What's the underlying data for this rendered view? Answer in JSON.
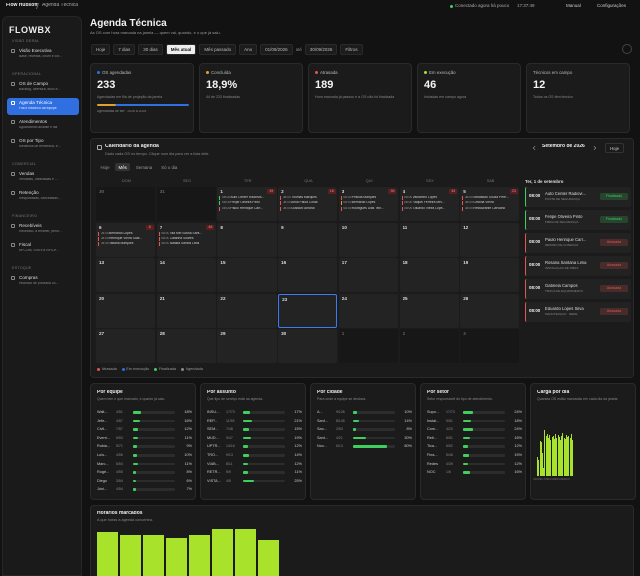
{
  "topbar": {
    "brand": "Flow Hubsoft",
    "crumb": "Agenda Técnica",
    "status": "Conectado agora há pouco",
    "clock": "17:37:49",
    "manual": "Manual",
    "settings": "Configurações"
  },
  "sidebar": {
    "logo": "FLOWBX",
    "sections": [
      {
        "title": "VISÃO GERAL",
        "items": [
          {
            "label": "Visão Executiva",
            "sub": "Base, receitas, churn e cor..."
          }
        ]
      },
      {
        "title": "OPERACIONAL",
        "items": [
          {
            "label": "OS de Campo",
            "sub": "Backlog, abertura, fluxo e..."
          },
          {
            "label": "Agenda Técnica",
            "sub": "Fila e histórico da equipe",
            "active": true
          },
          {
            "label": "Atendimentos",
            "sub": "Aguardando análise e fila"
          },
          {
            "label": "OS por Tipo",
            "sub": "Mecânica de tendência, e..."
          }
        ]
      },
      {
        "title": "COMERCIAL",
        "items": [
          {
            "label": "Vendas",
            "sub": "Vendidas, habilitadas e ..."
          },
          {
            "label": "Retenção",
            "sub": "Respondidas, canceladas..."
          }
        ]
      },
      {
        "title": "FINANCEIRO",
        "items": [
          {
            "label": "Recebíveis",
            "sub": "Recebido, a receber, pend..."
          },
          {
            "label": "Fiscal",
            "sub": "NFCOM, SVA e a NFS-e..."
          }
        ]
      },
      {
        "title": "ESTOQUE",
        "items": [
          {
            "label": "Compras",
            "sub": "Histórico de produtos co..."
          }
        ]
      }
    ]
  },
  "header": {
    "title": "Agenda Técnica",
    "subtitle": "As OS com hora marcada na janela — quem vai, quando, e o que já saiu."
  },
  "filters": {
    "presets": [
      {
        "label": "Hoje"
      },
      {
        "label": "7 dias"
      },
      {
        "label": "30 dias"
      },
      {
        "label": "Mês atual",
        "active": true
      },
      {
        "label": "Mês passado"
      },
      {
        "label": "Ano"
      }
    ],
    "date_from": "01/09/2026",
    "separator": "até",
    "date_to": "30/09/2026",
    "filters": "Filtros"
  },
  "kpis": [
    {
      "label": "OS agendadas",
      "value": "233",
      "note": "Agendadas em fila de projeção da janela",
      "note2": "Agendadas de set · 2026 a 2026",
      "color": "#2f6fe0"
    },
    {
      "label": "Concluída",
      "value": "18,9%",
      "note": "44 de 233 finalizadas",
      "color": "#e0a030"
    },
    {
      "label": "Atrasada",
      "value": "189",
      "note": "Hora marcada já passou e a OS não foi finalizada",
      "color": "#e05555"
    },
    {
      "label": "Em execução",
      "value": "46",
      "note": "Iniciadas em campo agora",
      "color": "#a8e22b"
    },
    {
      "label": "Técnicos em campo",
      "value": "12",
      "note": "Todos os OS têm técnico"
    }
  ],
  "calendar": {
    "title": "Calendário da agenda",
    "subtitle": "Dado cada OS no tempo. Clique num dia para ver a lista dele.",
    "views": [
      {
        "label": "Hoje"
      },
      {
        "label": "Mês",
        "active": true
      },
      {
        "label": "Semana"
      },
      {
        "label": "Só o dia"
      }
    ],
    "month_label": "Setembro de 2026",
    "today": "Hoje",
    "weekdays": [
      "DOM",
      "SEG",
      "TER",
      "QUA",
      "QUI",
      "SEX",
      "SAB"
    ],
    "weeks": [
      [
        {
          "day": 30,
          "muted": true
        },
        {
          "day": 31,
          "muted": true
        },
        {
          "day": 1,
          "count": 19,
          "events": [
            {
              "time": "08:00",
              "name": "Auto Center Radiovis...",
              "color": "#3ecf5e"
            },
            {
              "time": "08:00",
              "name": "Felipe Oliveira Pinto",
              "color": "#3ecf5e"
            },
            {
              "time": "08:00",
              "name": "Paulo Henrique Carr...",
              "color": "#e05555"
            }
          ]
        },
        {
          "day": 2,
          "count": 16,
          "events": [
            {
              "time": "08:00",
              "name": "Thomas Marques",
              "color": "#e05555"
            },
            {
              "time": "08:00",
              "name": "Alma Paula Costa",
              "color": "#e05555"
            },
            {
              "time": "08:00",
              "name": "Gustavo Amaral",
              "color": "#e05555"
            }
          ]
        },
        {
          "day": 3,
          "count": 35,
          "events": [
            {
              "time": "08:00",
              "name": "Priscila Marques",
              "color": "#e05555"
            },
            {
              "time": "08:00",
              "name": "Bernardo Lopes",
              "color": "#e0a030"
            },
            {
              "time": "08:00",
              "name": "Rodrigues Dias Teix...",
              "color": "#e05555"
            }
          ]
        },
        {
          "day": 4,
          "count": 34,
          "events": [
            {
              "time": "08:00",
              "name": "Valdomiro Lopes",
              "color": "#e05555"
            },
            {
              "time": "08:00",
              "name": "Raquel Ferreira Mel...",
              "color": "#e05555"
            },
            {
              "time": "08:00",
              "name": "Eduardo Vieira Lope...",
              "color": "#e05555"
            }
          ]
        },
        {
          "day": 5,
          "count": 23,
          "events": [
            {
              "time": "08:00",
              "name": "Sebastião Souza Pere...",
              "color": "#e05555"
            },
            {
              "time": "08:00",
              "name": "Cristina Vieira",
              "color": "#e05555"
            },
            {
              "time": "08:00",
              "name": "Restaurante Carvalho",
              "color": "#e05555"
            }
          ]
        }
      ],
      [
        {
          "day": 6,
          "count": 8,
          "events": [
            {
              "time": "08:00",
              "name": "Bernardo Lopes",
              "color": "#e05555"
            },
            {
              "time": "08:00",
              "name": "Henrique Vieira Soar...",
              "color": "#e05555"
            },
            {
              "time": "08:00",
              "name": "Tatiana Marques",
              "color": "#e05555"
            }
          ]
        },
        {
          "day": 7,
          "count": 46,
          "events": [
            {
              "time": "08:00",
              "name": "Vila Mel Sousa Sant...",
              "color": "#e05555"
            },
            {
              "time": "08:00",
              "name": "Catarina Soares",
              "color": "#e05555"
            },
            {
              "time": "08:00",
              "name": "Natália Santos Lima",
              "color": "#e05555"
            }
          ]
        },
        {
          "day": 8
        },
        {
          "day": 9
        },
        {
          "day": 10
        },
        {
          "day": 11
        },
        {
          "day": 12
        }
      ],
      [
        {
          "day": 13
        },
        {
          "day": 14
        },
        {
          "day": 15
        },
        {
          "day": 16
        },
        {
          "day": 17
        },
        {
          "day": 18
        },
        {
          "day": 19
        }
      ],
      [
        {
          "day": 20
        },
        {
          "day": 21
        },
        {
          "day": 22
        },
        {
          "day": 23,
          "selected": true
        },
        {
          "day": 24
        },
        {
          "day": 25
        },
        {
          "day": 26
        }
      ],
      [
        {
          "day": 27
        },
        {
          "day": 28
        },
        {
          "day": 29
        },
        {
          "day": 30
        },
        {
          "day": 1,
          "muted": true
        },
        {
          "day": 2,
          "muted": true
        },
        {
          "day": 3,
          "muted": true
        }
      ]
    ],
    "side": {
      "date": "Ter, 1 de setembro",
      "items": [
        {
          "time": "08:00",
          "name": "Auto Center Radiovi...",
          "sub": "POSTE DE SEGURANÇA",
          "status": "Finalizado",
          "color": "#3ecf5e"
        },
        {
          "time": "08:00",
          "name": "Felipe Oliveira Pinto",
          "sub": "FIBRA DE SEGURANÇA",
          "status": "Finalizado",
          "color": "#3ecf5e"
        },
        {
          "time": "08:00",
          "name": "Paulo Henrique Carr...",
          "sub": "REPARO DE CONEXÃO",
          "status": "Atrasada",
          "color": "#e05555"
        },
        {
          "time": "08:00",
          "name": "Rosana Santana Lima",
          "sub": "INSTALAÇÃO DE FIBRA",
          "status": "Atrasada",
          "color": "#e05555"
        },
        {
          "time": "08:00",
          "name": "Gabriela Campos",
          "sub": "TROCA DE EQUIPAMENTO",
          "status": "Atrasada",
          "color": "#e05555"
        },
        {
          "time": "08:00",
          "name": "Eduardo Lopes Silva",
          "sub": "MANUTENÇÃO · REDE",
          "status": "Atrasada",
          "color": "#e05555"
        }
      ]
    },
    "legend": [
      {
        "label": "Atrasada",
        "color": "#e05555"
      },
      {
        "label": "Em execução",
        "color": "#2f6fe0"
      },
      {
        "label": "Finalizada",
        "color": "#3ecf5e"
      },
      {
        "label": "Agendada",
        "color": "#888888"
      }
    ]
  },
  "panels": [
    {
      "title": "Por equipe",
      "subtitle": "Quem tem o que marcado, e quanto já saiu.",
      "rows": [
        {
          "name": "Walt...",
          "count": "4/51",
          "pct": {
            "value": 18,
            "label": "18%"
          }
        },
        {
          "name": "Jefe...",
          "count": "4/57",
          "pct": {
            "value": 16,
            "label": "16%"
          }
        },
        {
          "name": "Civil...",
          "count": "7/57",
          "pct": {
            "value": 12,
            "label": "12%"
          }
        },
        {
          "name": "Event...",
          "count": "6/53",
          "pct": {
            "value": 11,
            "label": "11%"
          }
        },
        {
          "name": "Rubia...",
          "count": "5/71",
          "pct": {
            "value": 9,
            "label": "9%"
          }
        },
        {
          "name": "Luis...",
          "count": "4/56",
          "pct": {
            "value": 10,
            "label": "10%"
          }
        },
        {
          "name": "Marc...",
          "count": "6/54",
          "pct": {
            "value": 11,
            "label": "11%"
          }
        },
        {
          "name": "Rogé...",
          "count": "4/55",
          "pct": {
            "value": 8,
            "label": "8%"
          }
        },
        {
          "name": "Diego",
          "count": "3/54",
          "pct": {
            "value": 6,
            "label": "6%"
          }
        },
        {
          "name": "Júni...",
          "count": "4/54",
          "pct": {
            "value": 7,
            "label": "7%"
          }
        }
      ]
    },
    {
      "title": "Por assunto",
      "subtitle": "Que tipo de serviço está na agenda.",
      "rows": [
        {
          "name": "INSU...",
          "count": "17/73",
          "pct": {
            "value": 17,
            "label": "17%"
          }
        },
        {
          "name": "REP...",
          "count": "11/53",
          "pct": {
            "value": 21,
            "label": "21%"
          }
        },
        {
          "name": "SEM...",
          "count": "7/48",
          "pct": {
            "value": 15,
            "label": "15%"
          }
        },
        {
          "name": "MUD...",
          "count": "9/47",
          "pct": {
            "value": 19,
            "label": "19%"
          }
        },
        {
          "name": "UPTR...",
          "count": "14/16",
          "pct": {
            "value": 12,
            "label": "12%"
          }
        },
        {
          "name": "TRO...",
          "count": "9/13",
          "pct": {
            "value": 14,
            "label": "14%"
          }
        },
        {
          "name": "VIAB...",
          "count": "8/11",
          "pct": {
            "value": 12,
            "label": "12%"
          }
        },
        {
          "name": "RETR...",
          "count": "5/9",
          "pct": {
            "value": 11,
            "label": "11%"
          }
        },
        {
          "name": "VISTA...",
          "count": "4/5",
          "pct": {
            "value": 25,
            "label": "25%"
          }
        }
      ]
    },
    {
      "title": "Por cidade",
      "subtitle": "Para onde a equipe se desloca.",
      "rows": [
        {
          "name": "A...",
          "count": "9/126",
          "pct": {
            "value": 10,
            "label": "10%"
          }
        },
        {
          "name": "Sant...",
          "count": "8/145",
          "pct": {
            "value": 14,
            "label": "14%"
          }
        },
        {
          "name": "Sao...",
          "count": "2/53",
          "pct": {
            "value": 8,
            "label": "8%"
          }
        },
        {
          "name": "Sant...",
          "count": "4/21",
          "pct": {
            "value": 30,
            "label": "30%"
          }
        },
        {
          "name": "Nov...",
          "count": "6/13",
          "pct": {
            "value": 80,
            "label": "80%"
          }
        }
      ]
    },
    {
      "title": "Por setor",
      "subtitle": "Setor responsável do tipo de atendimento.",
      "rows": [
        {
          "name": "Supo...",
          "count": "17/73",
          "pct": {
            "value": 24,
            "label": "24%"
          }
        },
        {
          "name": "Instal...",
          "count": "9/51",
          "pct": {
            "value": 18,
            "label": "18%"
          }
        },
        {
          "name": "Com...",
          "count": "4/20",
          "pct": {
            "value": 24,
            "label": "24%"
          }
        },
        {
          "name": "Reti...",
          "count": "8/51",
          "pct": {
            "value": 16,
            "label": "16%"
          }
        },
        {
          "name": "Tica...",
          "count": "6/52",
          "pct": {
            "value": 12,
            "label": "12%"
          }
        },
        {
          "name": "Fina...",
          "count": "5/46",
          "pct": {
            "value": 15,
            "label": "15%"
          }
        },
        {
          "name": "Redes",
          "count": "4/39",
          "pct": {
            "value": 12,
            "label": "12%"
          }
        },
        {
          "name": "NOC",
          "count": "1/6",
          "pct": {
            "value": 16,
            "label": "16%"
          }
        }
      ]
    }
  ],
  "chart_data": [
    {
      "type": "bar",
      "title": "Carga por dia",
      "subtitle": "Quantas OS estão marcadas em cada dia da janela.",
      "color": "#a8e22b",
      "categories": [
        "01/09",
        null,
        null,
        null,
        null,
        null,
        "07/09",
        null,
        null,
        null,
        null,
        null,
        "13/09",
        null,
        null,
        null,
        null,
        null,
        "19/09",
        null,
        null,
        null,
        null,
        null,
        "25/09",
        null,
        null,
        null,
        null,
        null
      ],
      "values": [
        19,
        16,
        35,
        34,
        23,
        8,
        46,
        40,
        42,
        38,
        41,
        36,
        39,
        40,
        37,
        42,
        38,
        41,
        39,
        36,
        40,
        43,
        38,
        37,
        41,
        39,
        40,
        38,
        42,
        36
      ],
      "ylim": [
        0,
        50
      ]
    },
    {
      "type": "bar",
      "title": "Horários marcados",
      "subtitle": "A que horas a agenda concentra.",
      "color": "#a8e22b",
      "values": [
        40,
        38,
        38,
        36,
        38,
        42,
        42,
        35
      ],
      "ylim": [
        0,
        50
      ]
    }
  ]
}
